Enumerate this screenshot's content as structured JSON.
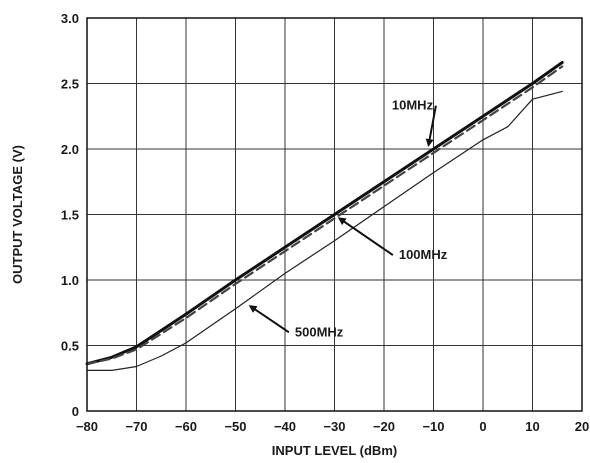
{
  "chart_data": {
    "type": "line",
    "xlabel": "INPUT LEVEL (dBm)",
    "ylabel": "OUTPUT VOLTAGE (V)",
    "xlim": [
      -80,
      20
    ],
    "ylim": [
      0,
      3.0
    ],
    "grid": true,
    "x_ticks": [
      -80,
      -70,
      -60,
      -50,
      -40,
      -30,
      -20,
      -10,
      0,
      10,
      20
    ],
    "x_tick_labels": [
      "−80",
      "−70",
      "−60",
      "−50",
      "−40",
      "−30",
      "−20",
      "−10",
      "0",
      "10",
      "20"
    ],
    "y_ticks": [
      0,
      0.5,
      1.0,
      1.5,
      2.0,
      2.5,
      3.0
    ],
    "y_tick_labels": [
      "0",
      "0.5",
      "1.0",
      "1.5",
      "2.0",
      "2.5",
      "3.0"
    ],
    "series": [
      {
        "name": "10MHz",
        "style": "solid-thick",
        "color": "#111111",
        "x": [
          -80,
          -75,
          -70,
          -60,
          -50,
          -40,
          -30,
          -20,
          -10,
          0,
          10,
          16
        ],
        "y": [
          0.36,
          0.41,
          0.49,
          0.74,
          1.0,
          1.25,
          1.5,
          1.75,
          2.0,
          2.25,
          2.5,
          2.66
        ]
      },
      {
        "name": "100MHz",
        "style": "dashed",
        "color": "#444444",
        "x": [
          -80,
          -75,
          -70,
          -60,
          -50,
          -40,
          -30,
          -20,
          -10,
          0,
          10,
          16
        ],
        "y": [
          0.36,
          0.4,
          0.47,
          0.71,
          0.97,
          1.22,
          1.47,
          1.72,
          1.97,
          2.22,
          2.47,
          2.63
        ]
      },
      {
        "name": "500MHz",
        "style": "solid-thin",
        "color": "#222222",
        "x": [
          -80,
          -75,
          -70,
          -65,
          -60,
          -50,
          -40,
          -30,
          -20,
          -10,
          0,
          5,
          10,
          16
        ],
        "y": [
          0.31,
          0.31,
          0.34,
          0.42,
          0.52,
          0.78,
          1.05,
          1.3,
          1.56,
          1.82,
          2.07,
          2.17,
          2.38,
          2.44
        ]
      }
    ],
    "annotations": [
      {
        "text": "10MHz",
        "x": -18,
        "y": 2.3,
        "arrow_to": [
          -11,
          2.03
        ]
      },
      {
        "text": "100MHz",
        "x": -17,
        "y": 1.16,
        "arrow_to": [
          -29,
          1.47
        ]
      },
      {
        "text": "500MHz",
        "x": -38,
        "y": 0.57,
        "arrow_to": [
          -47,
          0.8
        ]
      }
    ]
  }
}
